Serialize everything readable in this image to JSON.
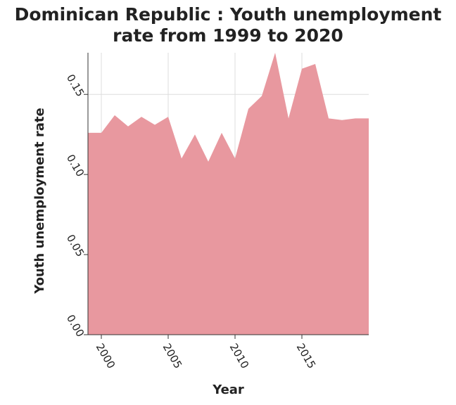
{
  "chart_data": {
    "type": "area",
    "title": "Dominican Republic : Youth unemployment rate from 1999 to 2020",
    "xlabel": "Year",
    "ylabel": "Youth unemployment rate",
    "xlim": [
      1999,
      2020
    ],
    "ylim": [
      0,
      0.176
    ],
    "x_ticks": [
      2000,
      2005,
      2010,
      2015
    ],
    "y_ticks": [
      0.0,
      0.05,
      0.1,
      0.15
    ],
    "y_tick_labels": [
      "0.00",
      "0.05",
      "0.10",
      "0.15"
    ],
    "grid": true,
    "fill_color": "#e8989f",
    "series": [
      {
        "x": [
          1999,
          2000,
          2001,
          2002,
          2003,
          2004,
          2005,
          2006,
          2007,
          2008,
          2009,
          2010,
          2011,
          2012,
          2013,
          2014,
          2015,
          2016,
          2017,
          2018,
          2019,
          2020
        ],
        "values": [
          0.126,
          0.126,
          0.137,
          0.13,
          0.136,
          0.131,
          0.136,
          0.11,
          0.125,
          0.108,
          0.126,
          0.11,
          0.141,
          0.149,
          0.176,
          0.135,
          0.166,
          0.169,
          0.135,
          0.134,
          0.135,
          0.135
        ]
      }
    ]
  }
}
